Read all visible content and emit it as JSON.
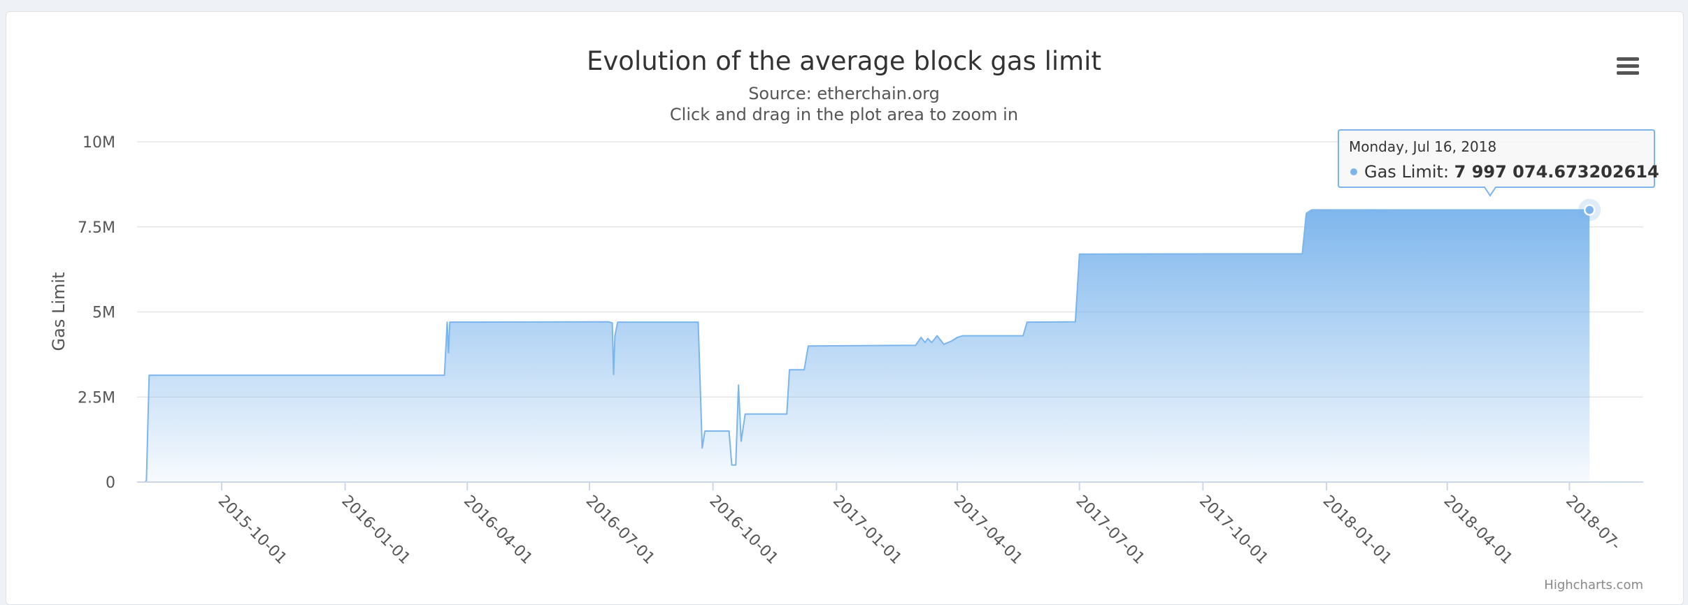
{
  "chart_data": {
    "type": "area",
    "title": "Evolution of the average block gas limit",
    "subtitle_lines": [
      "Source: etherchain.org",
      "Click and drag in the plot area to zoom in"
    ],
    "ylabel": "Gas Limit",
    "xlabel": "",
    "y_ticks": [
      {
        "value": 0,
        "label": "0"
      },
      {
        "value": 2500000,
        "label": "2.5M"
      },
      {
        "value": 5000000,
        "label": "5M"
      },
      {
        "value": 7500000,
        "label": "7.5M"
      },
      {
        "value": 10000000,
        "label": "10M"
      }
    ],
    "ylim": [
      0,
      10000000
    ],
    "xlim": [
      "2015-07-30",
      "2018-08-25"
    ],
    "x_ticks": [
      "2015-10-01",
      "2016-01-01",
      "2016-04-01",
      "2016-07-01",
      "2016-10-01",
      "2017-01-01",
      "2017-04-01",
      "2017-07-01",
      "2017-10-01",
      "2018-01-01",
      "2018-04-01",
      "2018-07-01"
    ],
    "x_tick_labels": [
      "2015-10-01",
      "2016-01-01",
      "2016-04-01",
      "2016-07-01",
      "2016-10-01",
      "2017-01-01",
      "2017-04-01",
      "2017-07-01",
      "2017-10-01",
      "2018-01-01",
      "2018-04-01",
      "2018-07-"
    ],
    "grid": true,
    "legend": "none",
    "color": "#7cb5ec",
    "series": [
      {
        "name": "Gas Limit",
        "points": [
          [
            "2015-07-30",
            0
          ],
          [
            "2015-08-05",
            0
          ],
          [
            "2015-08-06",
            50000
          ],
          [
            "2015-08-08",
            3140000
          ],
          [
            "2016-03-15",
            3140000
          ],
          [
            "2016-03-17",
            4700000
          ],
          [
            "2016-03-18",
            3800000
          ],
          [
            "2016-03-19",
            4700000
          ],
          [
            "2016-07-15",
            4710000
          ],
          [
            "2016-07-18",
            4680000
          ],
          [
            "2016-07-19",
            3160000
          ],
          [
            "2016-07-20",
            4300000
          ],
          [
            "2016-07-22",
            4700000
          ],
          [
            "2016-09-20",
            4700000
          ],
          [
            "2016-09-23",
            1000000
          ],
          [
            "2016-09-25",
            1500000
          ],
          [
            "2016-10-13",
            1500000
          ],
          [
            "2016-10-15",
            500000
          ],
          [
            "2016-10-18",
            500000
          ],
          [
            "2016-10-20",
            2850000
          ],
          [
            "2016-10-22",
            1200000
          ],
          [
            "2016-10-25",
            2000000
          ],
          [
            "2016-11-25",
            2000000
          ],
          [
            "2016-11-27",
            3300000
          ],
          [
            "2016-12-08",
            3300000
          ],
          [
            "2016-12-11",
            4000000
          ],
          [
            "2017-03-01",
            4020000
          ],
          [
            "2017-03-05",
            4250000
          ],
          [
            "2017-03-08",
            4100000
          ],
          [
            "2017-03-10",
            4220000
          ],
          [
            "2017-03-13",
            4100000
          ],
          [
            "2017-03-17",
            4300000
          ],
          [
            "2017-03-22",
            4050000
          ],
          [
            "2017-03-28",
            4150000
          ],
          [
            "2017-04-01",
            4250000
          ],
          [
            "2017-04-05",
            4300000
          ],
          [
            "2017-05-20",
            4300000
          ],
          [
            "2017-05-23",
            4700000
          ],
          [
            "2017-06-28",
            4710000
          ],
          [
            "2017-07-01",
            6700000
          ],
          [
            "2017-12-14",
            6710000
          ],
          [
            "2017-12-17",
            7900000
          ],
          [
            "2017-12-21",
            8000000
          ],
          [
            "2018-07-16",
            7997074.673202614
          ]
        ]
      }
    ],
    "tooltip": {
      "date": "Monday, Jul 16, 2018",
      "series_label": "Gas Limit",
      "value_text": "7 997 074.673202614"
    }
  },
  "export_menu": {
    "icon": "hamburger-menu-icon"
  },
  "credits": "Highcharts.com"
}
